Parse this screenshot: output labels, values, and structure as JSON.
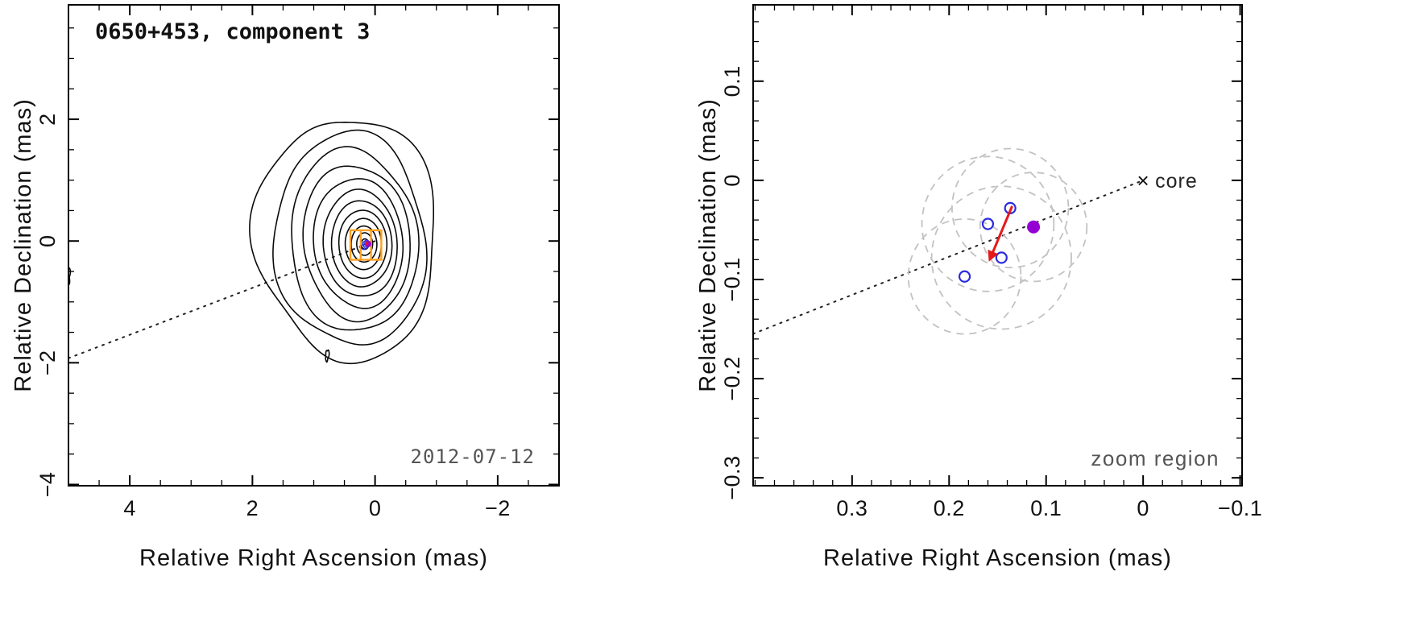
{
  "colors": {
    "frame": "#000000",
    "text": "#111111",
    "muted_text": "#555555",
    "contour": "#0a0a0a",
    "jet_line": "#222222",
    "zoom_box": "#ffa022",
    "epoch_marker": "#2b2be0",
    "mean_marker": "#9400d3",
    "motion_arrow": "#e31a1a",
    "size_circle": "#c2c2c2"
  },
  "jet_axis": {
    "style": "dotted",
    "slope_dec_per_ra": -0.385,
    "ends_at_core": true
  },
  "core": {
    "ra": 0,
    "dec": 0
  },
  "component_markers": {
    "epoch_positions": [
      {
        "ra": 0.137,
        "dec": -0.028
      },
      {
        "ra": 0.16,
        "dec": -0.044
      },
      {
        "ra": 0.146,
        "dec": -0.078
      },
      {
        "ra": 0.184,
        "dec": -0.097
      }
    ],
    "mean_position": {
      "ra": 0.113,
      "dec": -0.047
    },
    "motion_arrow": {
      "from_ra": 0.135,
      "from_dec": -0.026,
      "to_ra": 0.159,
      "to_dec": -0.082
    },
    "size_circles": [
      {
        "ra": 0.137,
        "dec": -0.028,
        "r": 0.06
      },
      {
        "ra": 0.16,
        "dec": -0.044,
        "r": 0.068
      },
      {
        "ra": 0.146,
        "dec": -0.078,
        "r": 0.072
      },
      {
        "ra": 0.184,
        "dec": -0.097,
        "r": 0.058
      },
      {
        "ra": 0.113,
        "dec": -0.047,
        "r": 0.055
      }
    ]
  },
  "chart_data": [
    {
      "type": "contour",
      "panel_id": "left",
      "title": "0650+453, component 3",
      "epoch_label": "2012-07-12",
      "xlabel": "Relative Right Ascension (mas)",
      "ylabel": "Relative Declination (mas)",
      "xlim": [
        5.0,
        -3.0
      ],
      "ylim": [
        -4.02,
        3.88
      ],
      "xticks": [
        4,
        2,
        0,
        -2
      ],
      "xtick_labels": [
        "4",
        "2",
        "0",
        "−2"
      ],
      "yticks": [
        2,
        0,
        -2,
        -4
      ],
      "ytick_labels": [
        "2",
        "0",
        "−2",
        "−4"
      ],
      "minor_tick_step": 0.5,
      "grid": false,
      "marker_px": {
        "epoch_r": 3.2,
        "epoch_w": 1.2,
        "mean_r": 4,
        "arrow_w": 1.4,
        "arrow_head": 6
      },
      "contours": [
        {
          "cx": 0.45,
          "cy": 0.05,
          "rx": 1.45,
          "ry": 2.03,
          "rot": -8,
          "wobble": 0.1
        },
        {
          "cx": 0.4,
          "cy": 0.02,
          "rx": 1.24,
          "ry": 1.74,
          "rot": -7,
          "wobble": 0.075
        },
        {
          "cx": 0.35,
          "cy": 0.0,
          "rx": 1.05,
          "ry": 1.48,
          "rot": -6,
          "wobble": 0.055
        },
        {
          "cx": 0.3,
          "cy": -0.02,
          "rx": 0.88,
          "ry": 1.26,
          "rot": -5,
          "wobble": 0.04
        },
        {
          "cx": 0.27,
          "cy": -0.03,
          "rx": 0.73,
          "ry": 1.06,
          "rot": -4,
          "wobble": 0.03
        },
        {
          "cx": 0.24,
          "cy": -0.04,
          "rx": 0.6,
          "ry": 0.88,
          "rot": -3,
          "wobble": 0.022
        },
        {
          "cx": 0.22,
          "cy": -0.045,
          "rx": 0.49,
          "ry": 0.71,
          "rot": -2,
          "wobble": 0.016
        },
        {
          "cx": 0.2,
          "cy": -0.05,
          "rx": 0.39,
          "ry": 0.56,
          "rot": -2,
          "wobble": 0.012
        },
        {
          "cx": 0.19,
          "cy": -0.05,
          "rx": 0.295,
          "ry": 0.42,
          "rot": -1,
          "wobble": 0.009
        },
        {
          "cx": 0.18,
          "cy": -0.05,
          "rx": 0.21,
          "ry": 0.295,
          "rot": -1,
          "wobble": 0.007
        },
        {
          "cx": 0.17,
          "cy": -0.05,
          "rx": 0.13,
          "ry": 0.185,
          "rot": 0,
          "wobble": 0.005
        },
        {
          "cx": 0.165,
          "cy": -0.05,
          "rx": 0.062,
          "ry": 0.085,
          "rot": 0,
          "wobble": 0
        }
      ],
      "artifact_contours": [
        {
          "cx": 0.78,
          "cy": -1.88,
          "rx": 0.025,
          "ry": 0.1,
          "rot": 5,
          "wobble": 0.25
        },
        {
          "cx": 5.02,
          "cy": -0.58,
          "rx": 0.05,
          "ry": 0.14,
          "rot": 0,
          "wobble": 0.3
        }
      ],
      "zoom_box": {
        "ra_max": 0.402,
        "ra_min": -0.102,
        "dec_max": 0.177,
        "dec_min": -0.308,
        "dividers": 2
      }
    },
    {
      "type": "scatter",
      "panel_id": "right",
      "xlabel": "Relative Right Ascension (mas)",
      "ylabel": "Relative Declination (mas)",
      "xlim": [
        0.402,
        -0.102
      ],
      "ylim": [
        -0.308,
        0.177
      ],
      "xticks": [
        0.3,
        0.2,
        0.1,
        0,
        -0.1
      ],
      "xtick_labels": [
        "0.3",
        "0.2",
        "0.1",
        "0",
        "−0.1"
      ],
      "yticks": [
        0.1,
        0,
        -0.1,
        -0.2,
        -0.3
      ],
      "ytick_labels": [
        "0.1",
        "0",
        "−0.1",
        "−0.2",
        "−0.3"
      ],
      "minor_tick_step": 0.02,
      "grid": false,
      "marker_px": {
        "epoch_r": 6.5,
        "epoch_w": 2.2,
        "mean_r": 8,
        "arrow_w": 3,
        "arrow_head": 15
      },
      "annotations": {
        "core_marker": "×",
        "core_label": "core",
        "zoom_label": "zoom region"
      }
    }
  ]
}
